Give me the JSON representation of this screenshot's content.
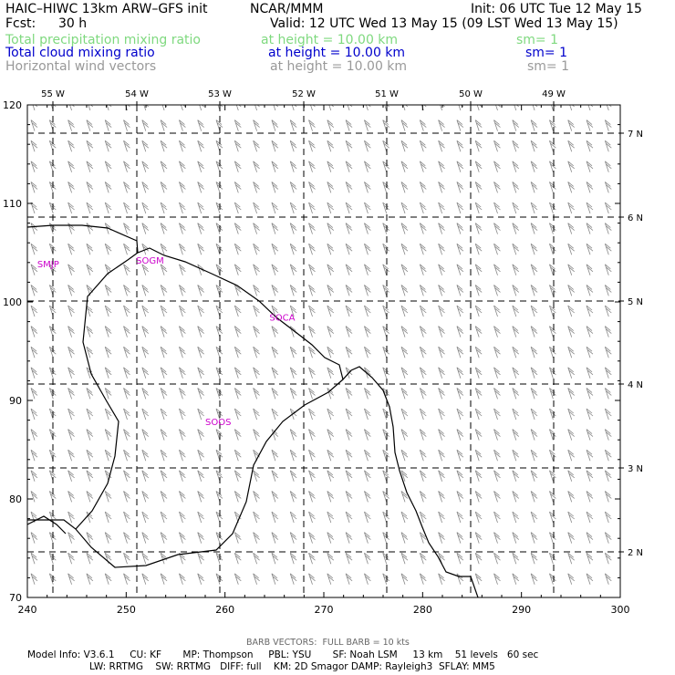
{
  "header": {
    "model_title": "HAIC–HIWC 13km ARW–GFS init",
    "org": "NCAR/MMM",
    "init": "Init: 06 UTC Tue 12 May 15",
    "fcst_label": "Fcst:",
    "fcst_value": "30 h",
    "valid": "Valid: 12 UTC Wed 13 May 15 (09 LST Wed 13 May 15)"
  },
  "fields": [
    {
      "name": "Total precipitation mixing ratio",
      "height": "at height = 10.00 km",
      "sm": "sm= 1",
      "color": "#7fd97f"
    },
    {
      "name": "Total cloud mixing ratio",
      "height": "at height = 10.00 km",
      "sm": "sm= 1",
      "color": "#0000cc"
    },
    {
      "name": "Horizontal wind vectors",
      "height": "at height = 10.00 km",
      "sm": "sm= 1",
      "color": "#999999"
    }
  ],
  "map": {
    "lon_labels": [
      "55 W",
      "54 W",
      "53 W",
      "52 W",
      "51 W",
      "50 W",
      "49 W"
    ],
    "lat_labels": [
      "7 N",
      "6 N",
      "5 N",
      "4 N",
      "3 N",
      "2 N"
    ],
    "x_ticks": [
      "240",
      "250",
      "260",
      "270",
      "280",
      "290",
      "300"
    ],
    "y_ticks": [
      "120",
      "110",
      "100",
      "90",
      "80",
      "70"
    ],
    "x_range": [
      240,
      300
    ],
    "y_range": [
      70,
      120
    ],
    "stations": [
      {
        "id": "SMJP",
        "x": 241,
        "y": 103.5
      },
      {
        "id": "SOGM",
        "x": 251,
        "y": 103.9
      },
      {
        "id": "SOCA",
        "x": 264.5,
        "y": 98.1
      },
      {
        "id": "SOOS",
        "x": 258,
        "y": 87.5
      }
    ],
    "station_color": "#cc00cc",
    "barb_color": "#888888"
  },
  "footer": {
    "barb_note": "BARB VECTORS:  FULL BARB = 10 kts",
    "line1": "Model Info: V3.6.1     CU: KF       MP: Thompson     PBL: YSU       SF: Noah LSM     13 km    51 levels   60 sec",
    "line2": "LW: RRTMG    SW: RRTMG   DIFF: full    KM: 2D Smagor DAMP: Rayleigh3  SFLAY: MM5"
  }
}
